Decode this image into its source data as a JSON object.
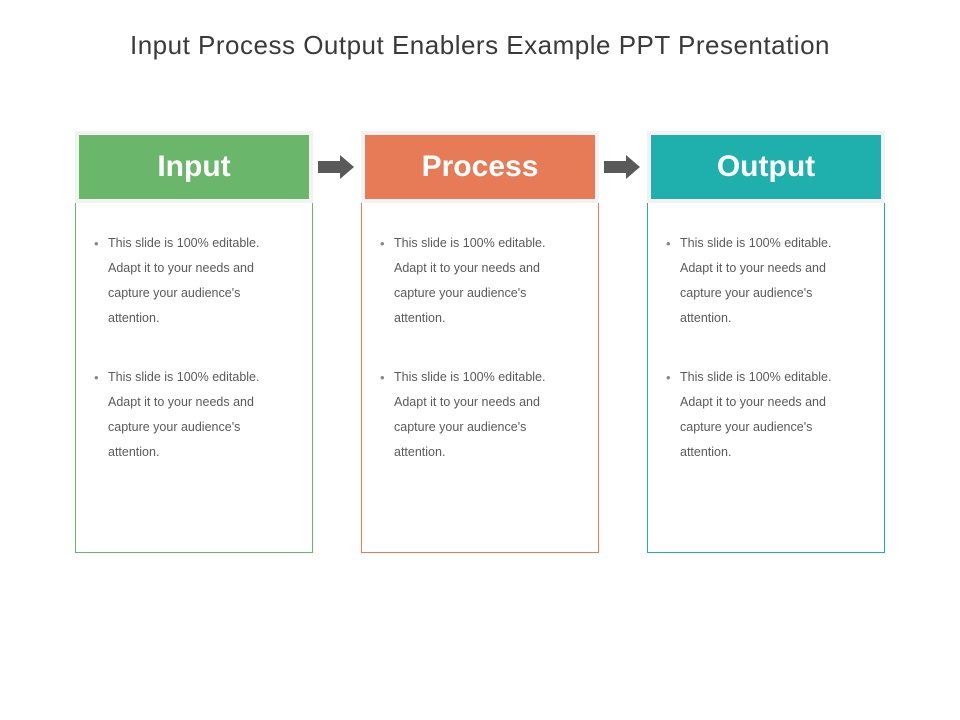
{
  "title": "Input Process Output Enablers Example PPT Presentation",
  "arrow_color": "#595959",
  "text_color": "#5a5a5a",
  "title_color": "#3a3a3a",
  "header_border_color": "#f2f2f2",
  "columns": [
    {
      "label": "Input",
      "header_bg": "#6ab66a",
      "border_color": "#6ab66a",
      "bullets": [
        "This slide is 100% editable. Adapt it to your needs and capture your audience's attention.",
        "This slide is 100% editable. Adapt it to your needs and capture your audience's attention."
      ]
    },
    {
      "label": "Process",
      "header_bg": "#e77a57",
      "border_color": "#e77a57",
      "bullets": [
        "This slide is 100% editable. Adapt it to your needs and capture your audience's attention.",
        "This slide is 100% editable. Adapt it to your needs and capture your audience's attention."
      ]
    },
    {
      "label": "Output",
      "header_bg": "#1fb0ad",
      "border_color": "#1fb0ad",
      "bullets": [
        "This slide is 100% editable. Adapt it to your needs and capture your audience's attention.",
        "This slide is 100% editable. Adapt it to your needs and capture your audience's attention."
      ]
    }
  ]
}
